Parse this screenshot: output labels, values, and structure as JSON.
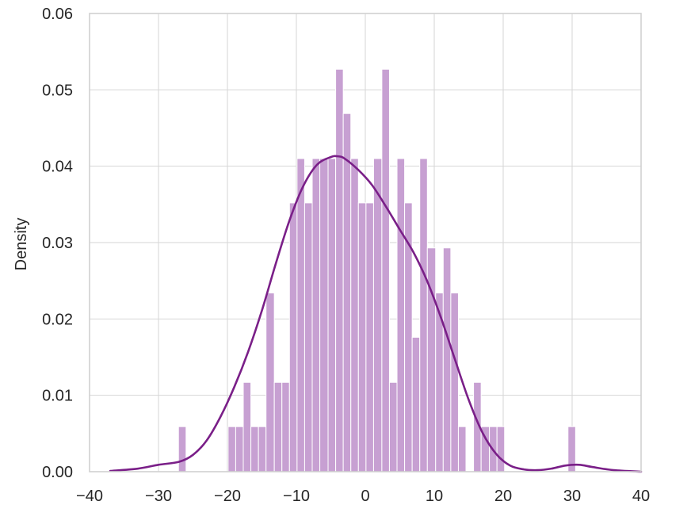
{
  "chart_data": {
    "type": "bar",
    "subtype": "histogram_with_kde",
    "title": "",
    "xlabel": "",
    "ylabel": "Density",
    "xlim": [
      -40,
      40
    ],
    "ylim": [
      0,
      0.06
    ],
    "x_ticks": [
      -40,
      -30,
      -20,
      -10,
      0,
      10,
      20,
      30,
      40
    ],
    "x_tick_labels": [
      "−40",
      "−30",
      "−20",
      "−10",
      "0",
      "10",
      "20",
      "30",
      "40"
    ],
    "y_ticks": [
      0,
      0.01,
      0.02,
      0.03,
      0.04,
      0.05,
      0.06
    ],
    "y_tick_labels": [
      "0.00",
      "0.01",
      "0.02",
      "0.03",
      "0.04",
      "0.05",
      "0.06"
    ],
    "grid": true,
    "bar_color": "#c7a0d2",
    "bar_edge_color": "#ffffff",
    "kde_color": "#7a1f88",
    "bins": [
      {
        "x0": -27.1,
        "x1": -26.0,
        "density": 0.0059
      },
      {
        "x0": -19.9,
        "x1": -18.8,
        "density": 0.0059
      },
      {
        "x0": -18.8,
        "x1": -17.7,
        "density": 0.0059
      },
      {
        "x0": -17.7,
        "x1": -16.6,
        "density": 0.0117
      },
      {
        "x0": -16.6,
        "x1": -15.5,
        "density": 0.0059
      },
      {
        "x0": -15.5,
        "x1": -14.4,
        "density": 0.0059
      },
      {
        "x0": -14.4,
        "x1": -13.2,
        "density": 0.0234
      },
      {
        "x0": -13.2,
        "x1": -12.1,
        "density": 0.0117
      },
      {
        "x0": -12.1,
        "x1": -11.0,
        "density": 0.0117
      },
      {
        "x0": -11.0,
        "x1": -9.9,
        "density": 0.0352
      },
      {
        "x0": -9.9,
        "x1": -8.8,
        "density": 0.041
      },
      {
        "x0": -8.8,
        "x1": -7.7,
        "density": 0.0352
      },
      {
        "x0": -7.7,
        "x1": -6.6,
        "density": 0.041
      },
      {
        "x0": -6.6,
        "x1": -5.4,
        "density": 0.041
      },
      {
        "x0": -5.4,
        "x1": -4.3,
        "density": 0.041
      },
      {
        "x0": -4.3,
        "x1": -3.2,
        "density": 0.0527
      },
      {
        "x0": -3.2,
        "x1": -2.1,
        "density": 0.0469
      },
      {
        "x0": -2.1,
        "x1": -1.0,
        "density": 0.041
      },
      {
        "x0": -1.0,
        "x1": 0.1,
        "density": 0.0352
      },
      {
        "x0": 0.1,
        "x1": 1.2,
        "density": 0.0352
      },
      {
        "x0": 1.2,
        "x1": 2.4,
        "density": 0.041
      },
      {
        "x0": 2.4,
        "x1": 3.5,
        "density": 0.0527
      },
      {
        "x0": 3.5,
        "x1": 4.6,
        "density": 0.0117
      },
      {
        "x0": 4.6,
        "x1": 5.7,
        "density": 0.041
      },
      {
        "x0": 5.7,
        "x1": 6.8,
        "density": 0.0352
      },
      {
        "x0": 6.8,
        "x1": 7.9,
        "density": 0.0176
      },
      {
        "x0": 7.9,
        "x1": 9.0,
        "density": 0.041
      },
      {
        "x0": 9.0,
        "x1": 10.2,
        "density": 0.0293
      },
      {
        "x0": 10.2,
        "x1": 11.3,
        "density": 0.0234
      },
      {
        "x0": 11.3,
        "x1": 12.4,
        "density": 0.0293
      },
      {
        "x0": 12.4,
        "x1": 13.5,
        "density": 0.0234
      },
      {
        "x0": 13.5,
        "x1": 14.6,
        "density": 0.0059
      },
      {
        "x0": 15.7,
        "x1": 16.8,
        "density": 0.0117
      },
      {
        "x0": 16.8,
        "x1": 18.0,
        "density": 0.0059
      },
      {
        "x0": 18.0,
        "x1": 19.1,
        "density": 0.0059
      },
      {
        "x0": 19.1,
        "x1": 20.2,
        "density": 0.0059
      },
      {
        "x0": 29.4,
        "x1": 30.5,
        "density": 0.0059
      }
    ],
    "kde": {
      "x": [
        -37.0,
        -33.0,
        -30.0,
        -27.0,
        -25.0,
        -23.0,
        -21.0,
        -19.0,
        -17.0,
        -15.0,
        -13.0,
        -11.0,
        -9.0,
        -7.0,
        -5.0,
        -4.0,
        -3.0,
        -1.0,
        1.0,
        3.0,
        5.0,
        7.0,
        9.0,
        11.0,
        13.0,
        15.0,
        17.0,
        19.0,
        21.0,
        23.0,
        25.0,
        27.0,
        29.0,
        31.0,
        33.0,
        36.0,
        40.0
      ],
      "y": [
        0.0001,
        0.0004,
        0.0009,
        0.0013,
        0.0022,
        0.0041,
        0.0072,
        0.0111,
        0.0157,
        0.0211,
        0.0272,
        0.0329,
        0.0374,
        0.0402,
        0.0412,
        0.0413,
        0.041,
        0.0395,
        0.0375,
        0.0347,
        0.0317,
        0.0287,
        0.0249,
        0.0201,
        0.0147,
        0.0094,
        0.0051,
        0.0023,
        0.0008,
        0.0003,
        0.0002,
        0.0004,
        0.0008,
        0.0009,
        0.0006,
        0.0002,
        0.0
      ]
    }
  }
}
